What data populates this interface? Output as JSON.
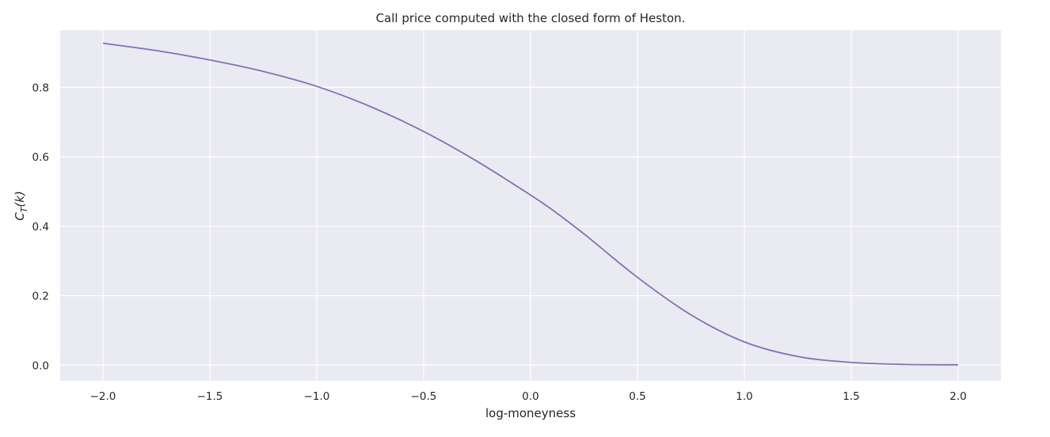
{
  "chart_data": {
    "type": "line",
    "title": "Call price computed with the closed form of Heston.",
    "xlabel": "log-moneyness",
    "ylabel": "C_T(k)",
    "xlim": [
      -2.2,
      2.2
    ],
    "ylim": [
      -0.045,
      0.965
    ],
    "xticks": [
      -2.0,
      -1.5,
      -1.0,
      -0.5,
      0.0,
      0.5,
      1.0,
      1.5,
      2.0
    ],
    "xtick_labels": [
      "−2.0",
      "−1.5",
      "−1.0",
      "−0.5",
      "0.0",
      "0.5",
      "1.0",
      "1.5",
      "2.0"
    ],
    "yticks": [
      0.0,
      0.2,
      0.4,
      0.6,
      0.8
    ],
    "ytick_labels": [
      "0.0",
      "0.2",
      "0.4",
      "0.6",
      "0.8"
    ],
    "grid": true,
    "background": "#eaeaf2",
    "line_color": "#8172b3",
    "series": [
      {
        "x": [
          -2.0,
          -1.75,
          -1.5,
          -1.25,
          -1.0,
          -0.75,
          -0.5,
          -0.25,
          0.0,
          0.1,
          0.25,
          0.5,
          0.75,
          1.0,
          1.25,
          1.5,
          1.75,
          2.0
        ],
        "values": [
          0.927,
          0.906,
          0.879,
          0.846,
          0.803,
          0.745,
          0.673,
          0.587,
          0.49,
          0.448,
          0.378,
          0.253,
          0.145,
          0.067,
          0.025,
          0.008,
          0.002,
          0.001
        ]
      }
    ]
  }
}
